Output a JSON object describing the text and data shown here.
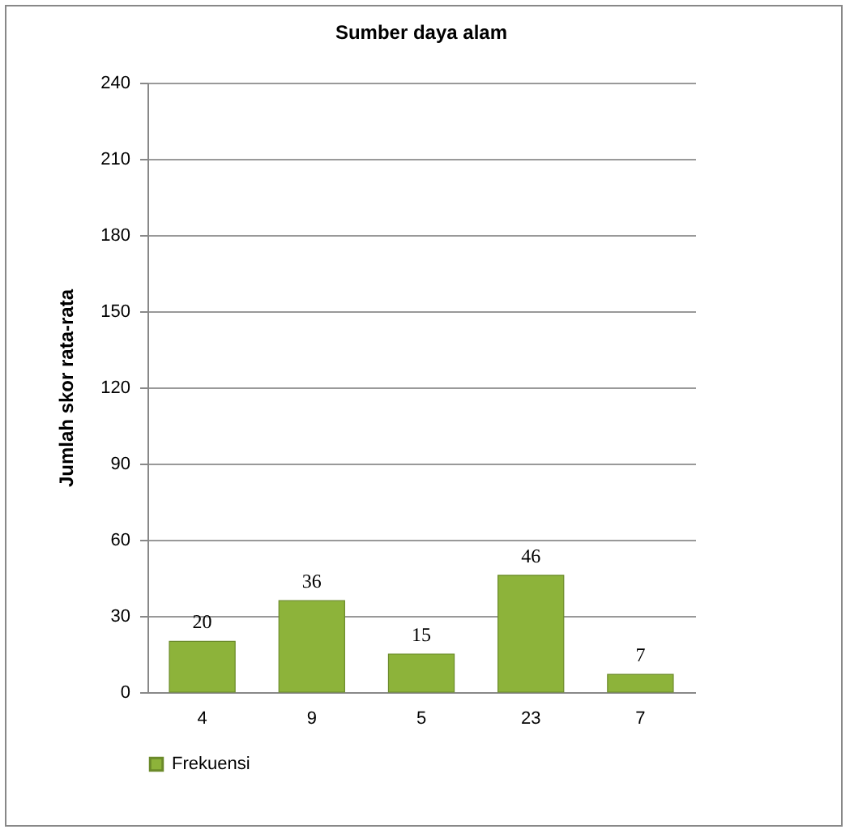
{
  "chart_data": {
    "type": "bar",
    "title": "Sumber daya alam",
    "ylabel": "Jumlah skor rata-rata",
    "categories": [
      "4",
      "9",
      "5",
      "23",
      "7"
    ],
    "series": [
      {
        "name": "Frekuensi",
        "color": "#8db33a",
        "values": [
          20,
          36,
          15,
          46,
          7
        ]
      }
    ],
    "ylim": [
      0,
      240
    ],
    "yticks": [
      0,
      30,
      60,
      90,
      120,
      150,
      180,
      210,
      240
    ],
    "grid": "y",
    "legend": "bottom",
    "data_labels": true
  }
}
